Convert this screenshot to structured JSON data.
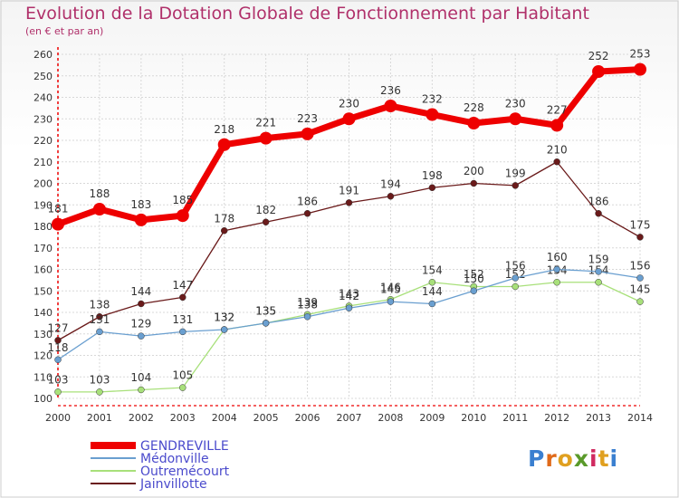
{
  "title": "Evolution de la Dotation Globale de Fonctionnement par Habitant",
  "subtitle": "(en € et par an)",
  "logo": "Proxiti",
  "colors": {
    "title": "#b0306a",
    "GENDREVILLE": "#ee0000",
    "Médonville": "#6a9fd0",
    "Outremécourt": "#a8e07a",
    "Jainvillotte": "#6a1a1a",
    "legend_text": "#4a4acc",
    "grid": "#d8d8d8",
    "axis_red": "#ee0000"
  },
  "chart_data": {
    "type": "line",
    "x": [
      2000,
      2001,
      2002,
      2003,
      2004,
      2005,
      2006,
      2007,
      2008,
      2009,
      2010,
      2011,
      2012,
      2013,
      2014
    ],
    "ylim": [
      100,
      260
    ],
    "yticks": [
      100,
      110,
      120,
      130,
      140,
      150,
      160,
      170,
      180,
      190,
      200,
      210,
      220,
      230,
      240,
      250,
      260
    ],
    "grid": true,
    "legend": "bottom-left",
    "series": [
      {
        "name": "GENDREVILLE",
        "values": [
          181,
          188,
          183,
          185,
          218,
          221,
          223,
          230,
          236,
          232,
          228,
          230,
          227,
          252,
          253
        ]
      },
      {
        "name": "Médonville",
        "values": [
          118,
          131,
          129,
          131,
          132,
          135,
          138,
          142,
          145,
          144,
          150,
          156,
          160,
          159,
          156
        ]
      },
      {
        "name": "Outremécourt",
        "values": [
          103,
          103,
          104,
          105,
          132,
          135,
          139,
          143,
          146,
          154,
          152,
          152,
          154,
          154,
          145
        ]
      },
      {
        "name": "Jainvillotte",
        "values": [
          127,
          138,
          144,
          147,
          178,
          182,
          186,
          191,
          194,
          198,
          200,
          199,
          210,
          186,
          175
        ]
      }
    ]
  }
}
